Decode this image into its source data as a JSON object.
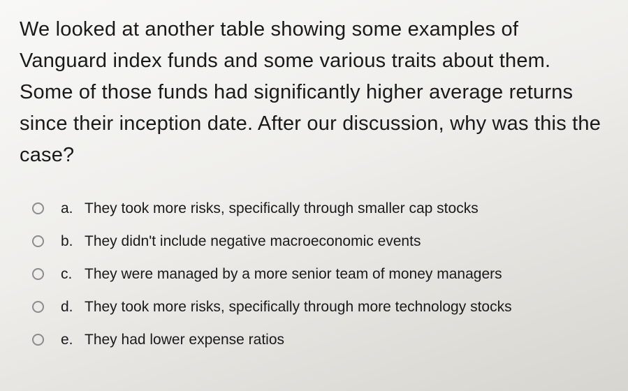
{
  "question": {
    "text": "We looked at another table showing some examples of Vanguard index funds and some various traits about them. Some of those funds had significantly higher average returns since their inception date. After our discussion, why was this the case?"
  },
  "options": [
    {
      "letter": "a.",
      "text": "They took more risks, specifically through smaller cap stocks"
    },
    {
      "letter": "b.",
      "text": "They didn't include negative macroeconomic events"
    },
    {
      "letter": "c.",
      "text": "They were managed by a more senior team of money managers"
    },
    {
      "letter": "d.",
      "text": "They took more risks, specifically through more technology stocks"
    },
    {
      "letter": "e.",
      "text": "They had lower expense ratios"
    }
  ],
  "colors": {
    "text": "#1a1a1a",
    "radio_border": "#8c8c8c",
    "bg_light": "#f8f8f6",
    "bg_dark": "#d7d5cf"
  },
  "typography": {
    "question_fontsize": 29,
    "option_fontsize": 21,
    "font_family": "Arial"
  }
}
